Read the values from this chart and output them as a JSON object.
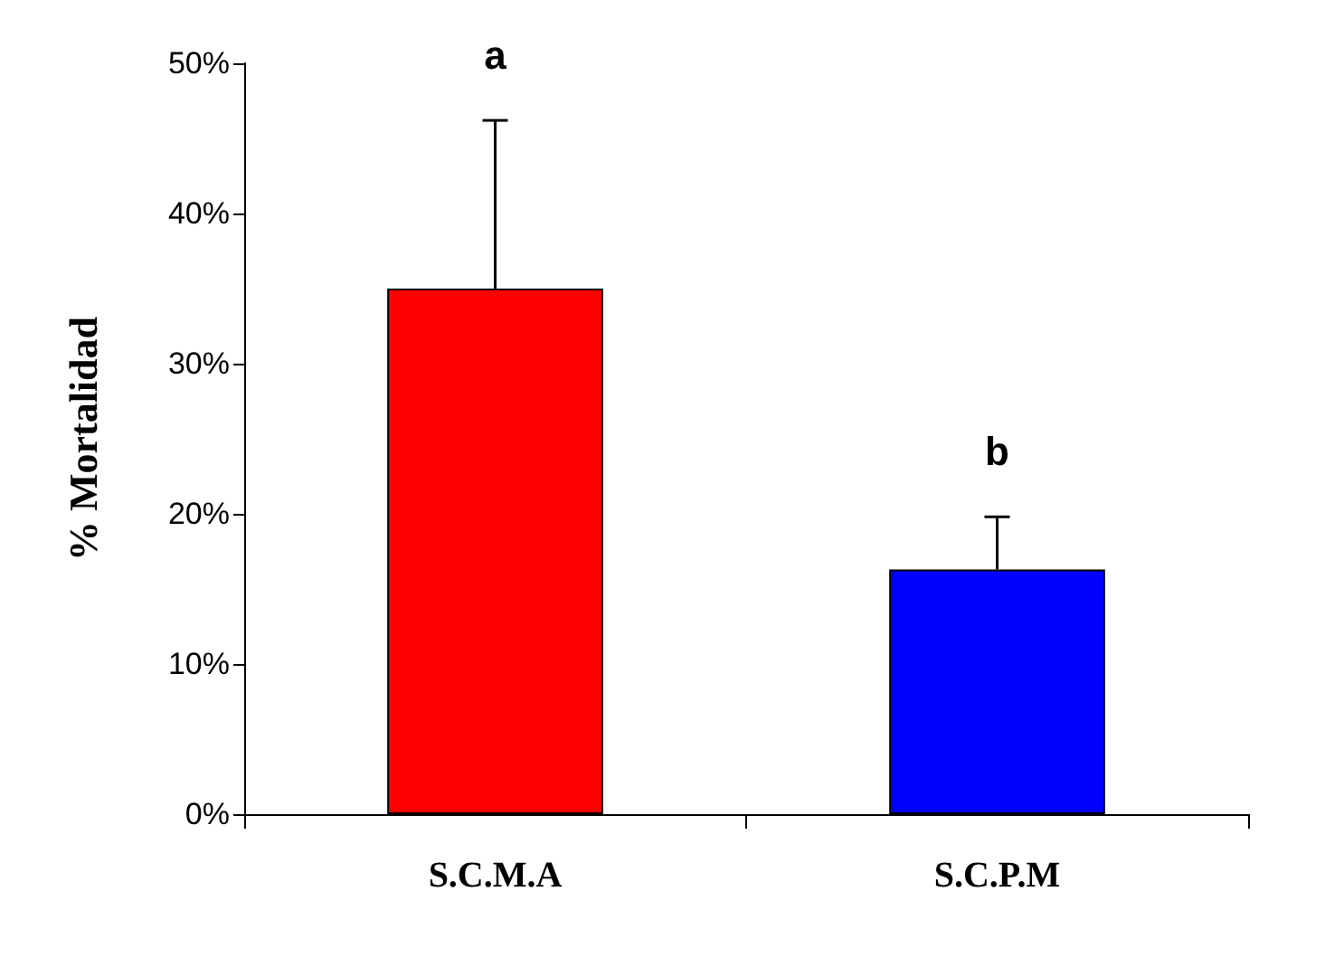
{
  "chart_data": {
    "type": "bar",
    "ylabel": "% Mortalidad",
    "categories": [
      "S.C.M.A",
      "S.C.P.M"
    ],
    "values": [
      35,
      16.3
    ],
    "colors": [
      "#ff0000",
      "#0000ff"
    ],
    "errors": [
      [
        35,
        46.2
      ],
      [
        16.3,
        19.8
      ]
    ],
    "ylim": [
      0,
      50
    ],
    "yticks": [
      {
        "value": 0,
        "label": "0%"
      },
      {
        "value": 10,
        "label": "10%"
      },
      {
        "value": 20,
        "label": "20%"
      },
      {
        "value": 30,
        "label": "30%"
      },
      {
        "value": 40,
        "label": "40%"
      },
      {
        "value": 50,
        "label": "50%"
      }
    ],
    "annotations": [
      "a",
      "b"
    ],
    "grid": false
  }
}
